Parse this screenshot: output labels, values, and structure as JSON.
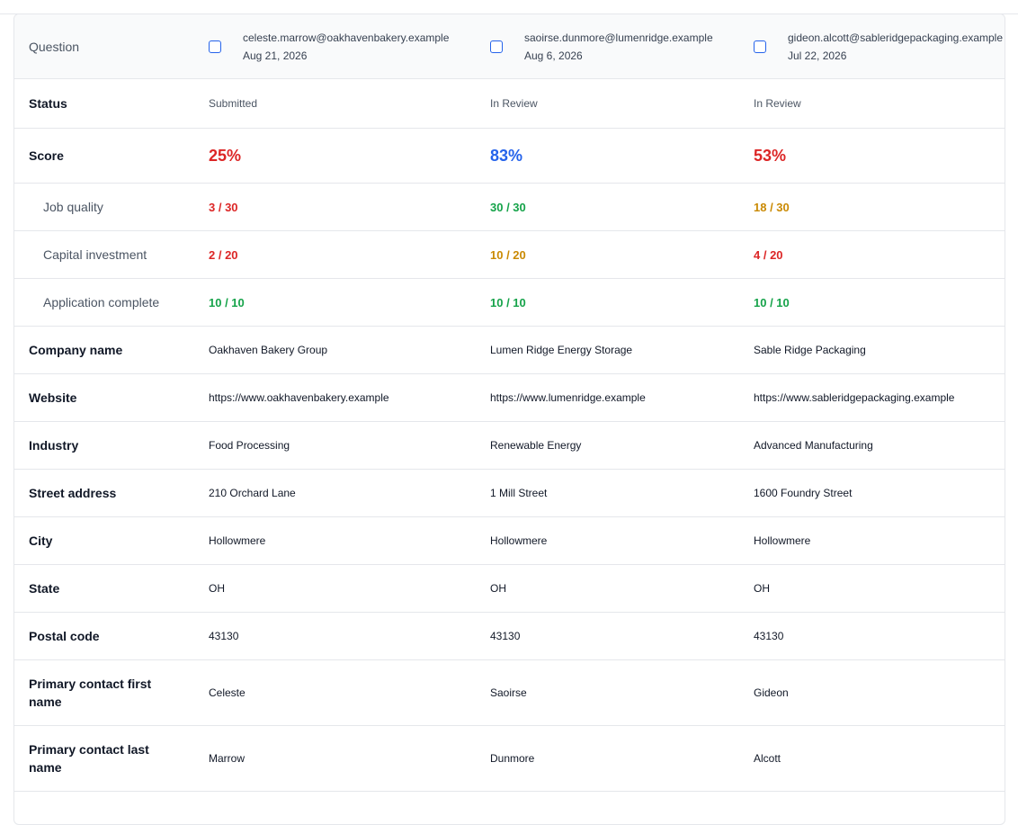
{
  "table": {
    "question_label": "Question",
    "applicants": [
      {
        "email": "celeste.marrow@oakhavenbakery.example",
        "date": "Aug 21, 2026"
      },
      {
        "email": "saoirse.dunmore@lumenridge.example",
        "date": "Aug 6, 2026"
      },
      {
        "email": "gideon.alcott@sableridgepackaging.example",
        "date": "Jul 22, 2026"
      }
    ],
    "rows": {
      "status": {
        "label": "Status",
        "values": [
          "Submitted",
          "In Review",
          "In Review"
        ]
      },
      "score": {
        "label": "Score",
        "values": [
          "25%",
          "83%",
          "53%"
        ]
      },
      "job_quality": {
        "label": "Job quality",
        "values": [
          "3 / 30",
          "30 / 30",
          "18 / 30"
        ]
      },
      "capital_investment": {
        "label": "Capital investment",
        "values": [
          "2 / 20",
          "10 / 20",
          "4 / 20"
        ]
      },
      "application_complete": {
        "label": "Application complete",
        "values": [
          "10 / 10",
          "10 / 10",
          "10 / 10"
        ]
      },
      "company_name": {
        "label": "Company name",
        "values": [
          "Oakhaven Bakery Group",
          "Lumen Ridge Energy Storage",
          "Sable Ridge Packaging"
        ]
      },
      "website": {
        "label": "Website",
        "values": [
          "https://www.oakhavenbakery.example",
          "https://www.lumenridge.example",
          "https://www.sableridgepackaging.example"
        ]
      },
      "industry": {
        "label": "Industry",
        "values": [
          "Food Processing",
          "Renewable Energy",
          "Advanced Manufacturing"
        ]
      },
      "street_address": {
        "label": "Street address",
        "values": [
          "210 Orchard Lane",
          "1 Mill Street",
          "1600 Foundry Street"
        ]
      },
      "city": {
        "label": "City",
        "values": [
          "Hollowmere",
          "Hollowmere",
          "Hollowmere"
        ]
      },
      "state": {
        "label": "State",
        "values": [
          "OH",
          "OH",
          "OH"
        ]
      },
      "postal_code": {
        "label": "Postal code",
        "values": [
          "43130",
          "43130",
          "43130"
        ]
      },
      "contact_first": {
        "label": "Primary contact first name",
        "values": [
          "Celeste",
          "Saoirse",
          "Gideon"
        ]
      },
      "contact_last": {
        "label": "Primary contact last name",
        "values": [
          "Marrow",
          "Dunmore",
          "Alcott"
        ]
      }
    }
  },
  "colors": {
    "low": "#dc2626",
    "high": "#2563eb",
    "full": "#16a34a",
    "mid": "#ca8a04",
    "checkbox": "#2563eb"
  }
}
